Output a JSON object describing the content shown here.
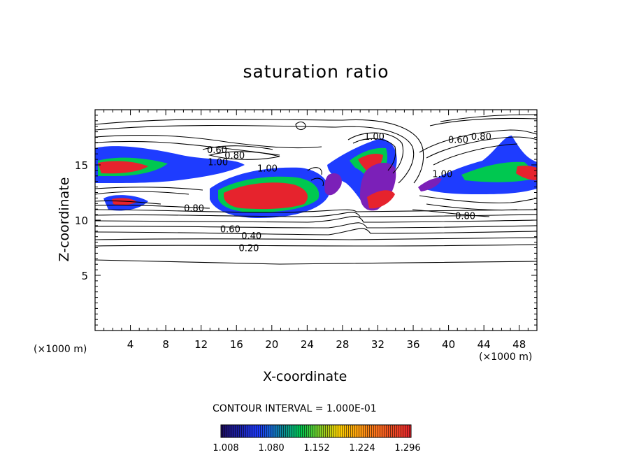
{
  "chart_data": {
    "type": "contour",
    "title": "saturation ratio",
    "xlabel": "X-coordinate",
    "ylabel": "Z-coordinate",
    "x_unit_label": "(×1000 m)",
    "xlim": [
      0,
      50
    ],
    "ylim": [
      0,
      20
    ],
    "x_ticks": [
      4,
      8,
      12,
      16,
      20,
      24,
      28,
      32,
      36,
      40,
      44,
      48
    ],
    "y_ticks": [
      5,
      10,
      15
    ],
    "contour_interval_label": "CONTOUR INTERVAL = 1.000E-01",
    "contour_labels": [
      {
        "text": "0.20",
        "x": 17.4,
        "y": 7.5
      },
      {
        "text": "0.40",
        "x": 17.7,
        "y": 8.6
      },
      {
        "text": "0.60",
        "x": 15.3,
        "y": 9.2
      },
      {
        "text": "0.80",
        "x": 11.2,
        "y": 11.1
      },
      {
        "text": "0.60",
        "x": 13.8,
        "y": 16.4
      },
      {
        "text": "0.80",
        "x": 15.8,
        "y": 15.9
      },
      {
        "text": "1.00",
        "x": 13.9,
        "y": 15.3
      },
      {
        "text": "1.00",
        "x": 19.5,
        "y": 14.7
      },
      {
        "text": "1.00",
        "x": 31.6,
        "y": 17.6
      },
      {
        "text": "0.60",
        "x": 41.1,
        "y": 17.3
      },
      {
        "text": "0.80",
        "x": 43.7,
        "y": 17.6
      },
      {
        "text": "1.00",
        "x": 39.3,
        "y": 14.2
      },
      {
        "text": "0.80",
        "x": 41.9,
        "y": 10.4
      }
    ],
    "colorbar": {
      "ticks": [
        "1.008",
        "1.080",
        "1.152",
        "1.224",
        "1.296"
      ]
    },
    "colors": {
      "low": "#1b0a5c",
      "mid_low": "#1e3cff",
      "mid": "#00c850",
      "mid_high": "#ffd200",
      "high": "#e6232d",
      "purple": "#7b20b8"
    }
  }
}
